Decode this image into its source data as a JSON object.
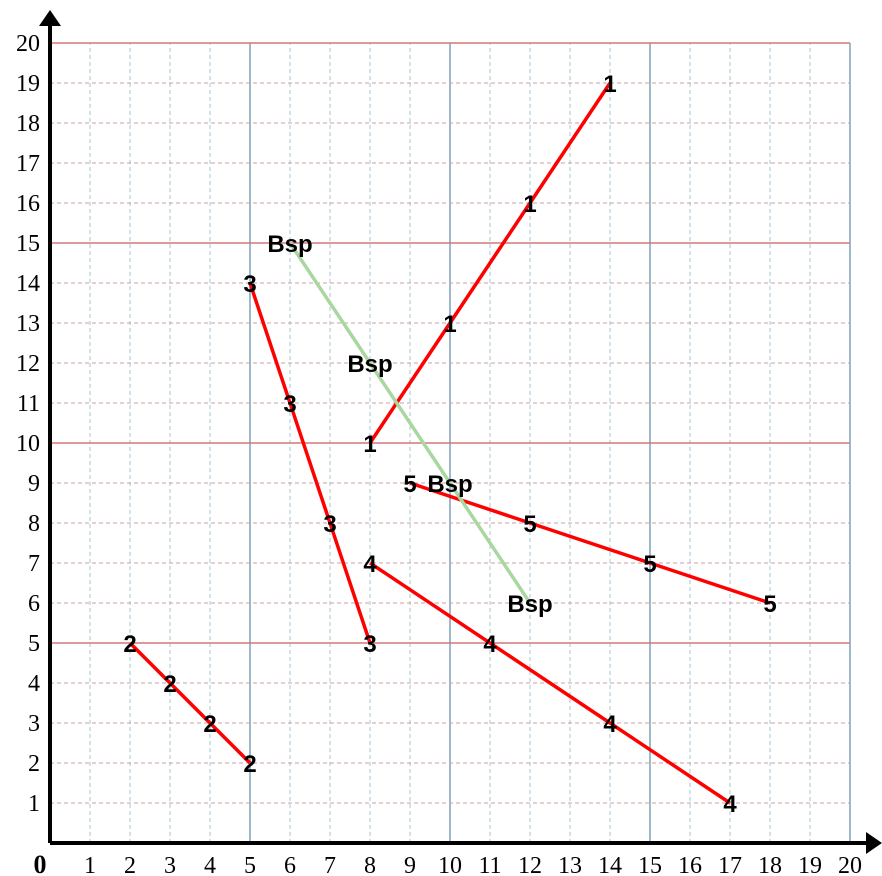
{
  "chart_data": {
    "type": "line",
    "origin_label": "0",
    "xlim": [
      0,
      20
    ],
    "ylim": [
      0,
      20
    ],
    "x_ticks": [
      "1",
      "2",
      "3",
      "4",
      "5",
      "6",
      "7",
      "8",
      "9",
      "10",
      "11",
      "12",
      "13",
      "14",
      "15",
      "16",
      "17",
      "18",
      "19",
      "20"
    ],
    "y_ticks": [
      "1",
      "2",
      "3",
      "4",
      "5",
      "6",
      "7",
      "8",
      "9",
      "10",
      "11",
      "12",
      "13",
      "14",
      "15",
      "16",
      "17",
      "18",
      "19",
      "20"
    ],
    "grid": true,
    "major_grid_x": [
      5,
      10,
      15,
      20
    ],
    "major_grid_y": [
      5,
      10,
      15,
      20
    ],
    "series": [
      {
        "label": "1",
        "color": "#ff0000",
        "points": [
          [
            8,
            10
          ],
          [
            10,
            13
          ],
          [
            12,
            16
          ],
          [
            14,
            19
          ]
        ]
      },
      {
        "label": "2",
        "color": "#ff0000",
        "points": [
          [
            2,
            5
          ],
          [
            3,
            4
          ],
          [
            4,
            3
          ],
          [
            5,
            2
          ]
        ]
      },
      {
        "label": "3",
        "color": "#ff0000",
        "points": [
          [
            5,
            14
          ],
          [
            6,
            11
          ],
          [
            7,
            8
          ],
          [
            8,
            5
          ]
        ]
      },
      {
        "label": "4",
        "color": "#ff0000",
        "points": [
          [
            8,
            7
          ],
          [
            11,
            5
          ],
          [
            14,
            3
          ],
          [
            17,
            1
          ]
        ]
      },
      {
        "label": "5",
        "color": "#ff0000",
        "points": [
          [
            9,
            9
          ],
          [
            12,
            8
          ],
          [
            15,
            7
          ],
          [
            18,
            6
          ]
        ]
      },
      {
        "label": "Bsp",
        "color": "#a8d8a0",
        "points": [
          [
            6,
            15
          ],
          [
            8,
            12
          ],
          [
            10,
            9
          ],
          [
            12,
            6
          ]
        ]
      }
    ]
  }
}
